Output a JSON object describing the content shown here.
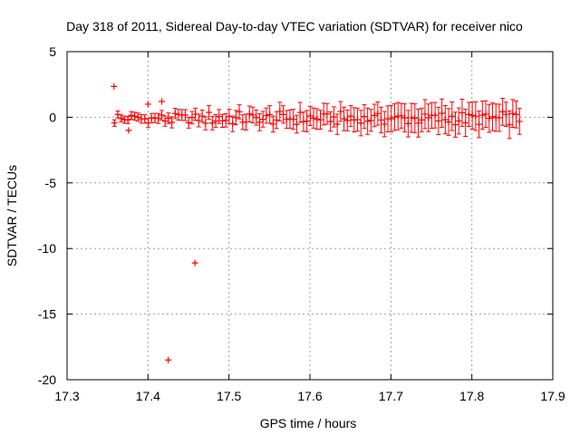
{
  "chart_data": {
    "type": "scatter",
    "title": "Day 318 of 2011, Sidereal Day-to-day VTEC variation (SDTVAR) for receiver nico",
    "xlabel": "GPS time / hours",
    "ylabel": "SDTVAR / TECUs",
    "xlim": [
      17.3,
      17.9
    ],
    "ylim": [
      -20,
      5
    ],
    "x_ticks": [
      17.3,
      17.4,
      17.5,
      17.6,
      17.7,
      17.8,
      17.9
    ],
    "x_tick_labels": [
      "17.3",
      "17.4",
      "17.5",
      "17.6",
      "17.7",
      "17.8",
      "17.9"
    ],
    "y_ticks": [
      5,
      0,
      -5,
      -10,
      -15,
      -20
    ],
    "y_tick_labels": [
      "5",
      "0",
      "-5",
      "-10",
      "-15",
      "-20"
    ],
    "grid": true,
    "legend": "none",
    "color": "#ff0000",
    "series": [
      {
        "name": "SDTVAR with error bars",
        "style": "errorbar",
        "x_start": 17.3585,
        "x_end": 17.8585,
        "x_step": 0.00417,
        "y_mean": -0.15,
        "y_spread": 0.45,
        "err_start": 0.25,
        "err_end": 1.0
      },
      {
        "name": "outliers",
        "style": "point",
        "points": [
          {
            "x": 17.358,
            "y": 2.35
          },
          {
            "x": 17.376,
            "y": -1.0
          },
          {
            "x": 17.4,
            "y": 1.0
          },
          {
            "x": 17.417,
            "y": 1.2
          },
          {
            "x": 17.425,
            "y": -18.5
          },
          {
            "x": 17.458,
            "y": -11.1
          }
        ]
      }
    ]
  }
}
